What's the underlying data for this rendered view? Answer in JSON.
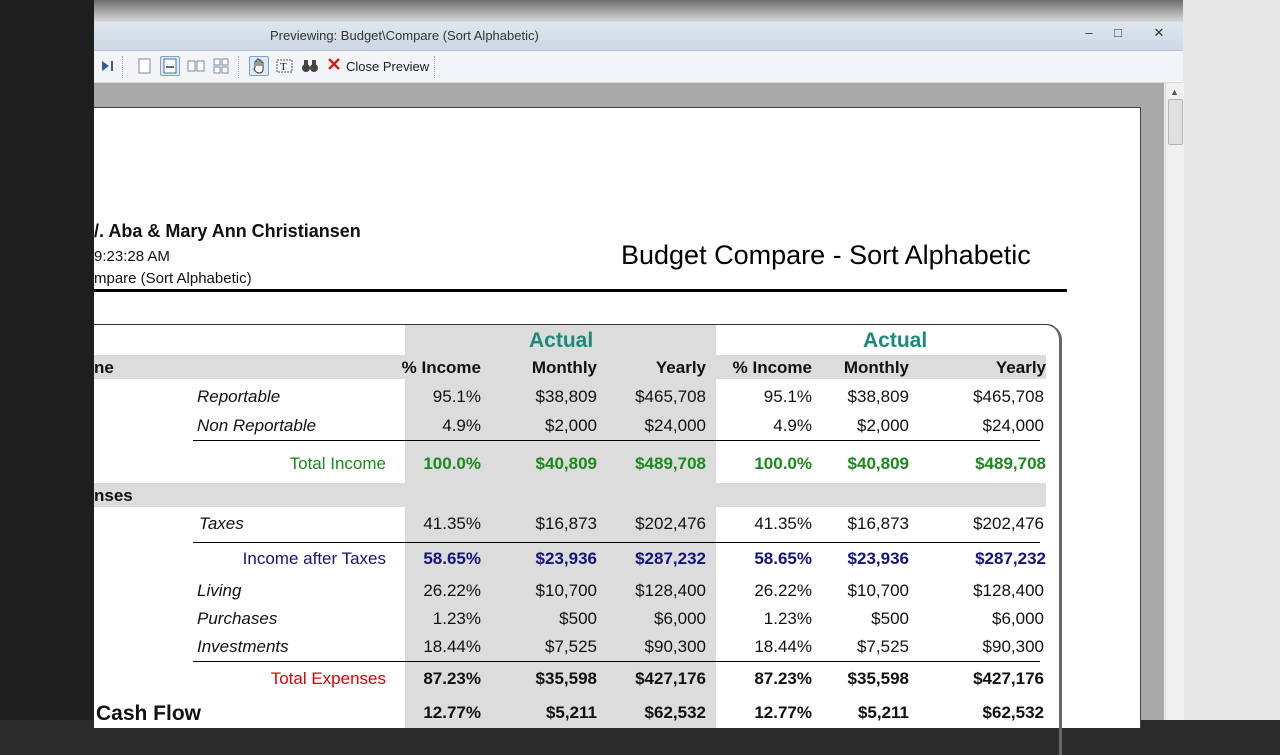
{
  "window": {
    "title": "Previewing: Budget\\Compare (Sort Alphabetic)",
    "controls": [
      "–",
      "□",
      "✕"
    ]
  },
  "toolbar": {
    "close_preview_label": "Close Preview"
  },
  "report": {
    "names": "/. Aba & Mary Ann Christiansen",
    "time": "9:23:28 AM",
    "report_name": "mpare (Sort Alphabetic)",
    "title": "Budget Compare - Sort Alphabetic",
    "group_labels": [
      "Actual",
      "Actual"
    ],
    "columns": [
      "% Income",
      "Monthly",
      "Yearly",
      "% Income",
      "Monthly",
      "Yearly"
    ],
    "sections": {
      "income": "ne",
      "expenses": "nses",
      "cash_flow": "Cash Flow"
    },
    "rows": {
      "reportable": {
        "label": "Reportable",
        "values": [
          "95.1%",
          "$38,809",
          "$465,708",
          "95.1%",
          "$38,809",
          "$465,708"
        ]
      },
      "non_reportable": {
        "label": "Non Reportable",
        "values": [
          "4.9%",
          "$2,000",
          "$24,000",
          "4.9%",
          "$2,000",
          "$24,000"
        ]
      },
      "total_income": {
        "label": "Total Income",
        "values": [
          "100.0%",
          "$40,809",
          "$489,708",
          "100.0%",
          "$40,809",
          "$489,708"
        ]
      },
      "taxes": {
        "label": "Taxes",
        "values": [
          "41.35%",
          "$16,873",
          "$202,476",
          "41.35%",
          "$16,873",
          "$202,476"
        ]
      },
      "income_after_taxes": {
        "label": "Income after Taxes",
        "values": [
          "58.65%",
          "$23,936",
          "$287,232",
          "58.65%",
          "$23,936",
          "$287,232"
        ]
      },
      "living": {
        "label": "Living",
        "values": [
          "26.22%",
          "$10,700",
          "$128,400",
          "26.22%",
          "$10,700",
          "$128,400"
        ]
      },
      "purchases": {
        "label": "Purchases",
        "values": [
          "1.23%",
          "$500",
          "$6,000",
          "1.23%",
          "$500",
          "$6,000"
        ]
      },
      "investments": {
        "label": "Investments",
        "values": [
          "18.44%",
          "$7,525",
          "$90,300",
          "18.44%",
          "$7,525",
          "$90,300"
        ]
      },
      "total_expenses": {
        "label": "Total Expenses",
        "values": [
          "87.23%",
          "$35,598",
          "$427,176",
          "87.23%",
          "$35,598",
          "$427,176"
        ]
      },
      "cash_flow_totals": {
        "values": [
          "12.77%",
          "$5,211",
          "$62,532",
          "12.77%",
          "$5,211",
          "$62,532"
        ]
      }
    }
  },
  "colors": {
    "total_income": "#1a8a1a",
    "income_after_taxes": "#13137a",
    "total_expenses": "#e00000",
    "group_header": "#1a8a7a"
  }
}
